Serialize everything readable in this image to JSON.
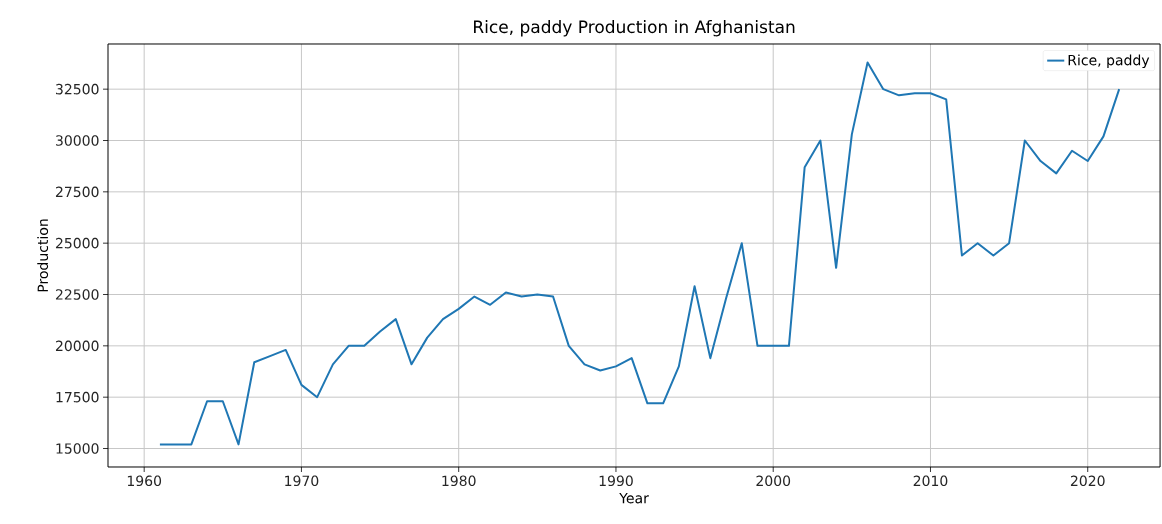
{
  "chart_data": {
    "type": "line",
    "title": "Rice, paddy Production in Afghanistan",
    "xlabel": "Year",
    "ylabel": "Production",
    "x": [
      1961,
      1962,
      1963,
      1964,
      1965,
      1966,
      1967,
      1968,
      1969,
      1970,
      1971,
      1972,
      1973,
      1974,
      1975,
      1976,
      1977,
      1978,
      1979,
      1980,
      1981,
      1982,
      1983,
      1984,
      1985,
      1986,
      1987,
      1988,
      1989,
      1990,
      1991,
      1992,
      1993,
      1994,
      1995,
      1996,
      1997,
      1998,
      1999,
      2000,
      2001,
      2002,
      2003,
      2004,
      2005,
      2006,
      2007,
      2008,
      2009,
      2010,
      2011,
      2012,
      2013,
      2014,
      2015,
      2016,
      2017,
      2018,
      2019,
      2020,
      2021,
      2022
    ],
    "series": [
      {
        "name": "Rice, paddy",
        "color": "#1f77b4",
        "values": [
          15200,
          15200,
          15200,
          17300,
          17300,
          15200,
          19200,
          19500,
          19800,
          18100,
          17500,
          19100,
          20000,
          20000,
          20700,
          21300,
          19100,
          20400,
          21300,
          21800,
          22400,
          22000,
          22600,
          22400,
          22500,
          22400,
          20000,
          19100,
          18800,
          19000,
          19400,
          17200,
          17200,
          19000,
          22900,
          19400,
          22300,
          25000,
          20000,
          20000,
          20000,
          28700,
          30000,
          23800,
          30300,
          33800,
          32500,
          32200,
          32300,
          32300,
          32000,
          24400,
          25000,
          24400,
          25000,
          30000,
          29000,
          28400,
          29500,
          29000,
          30200,
          32500
        ]
      }
    ],
    "xlim": [
      1957.7,
      2024.6
    ],
    "ylim": [
      14100,
      34700
    ],
    "xticks": [
      1960,
      1970,
      1980,
      1990,
      2000,
      2010,
      2020
    ],
    "yticks": [
      15000,
      17500,
      20000,
      22500,
      25000,
      27500,
      30000,
      32500
    ],
    "grid": true,
    "legend": "top right",
    "line_style": "solid",
    "marker": "none"
  }
}
